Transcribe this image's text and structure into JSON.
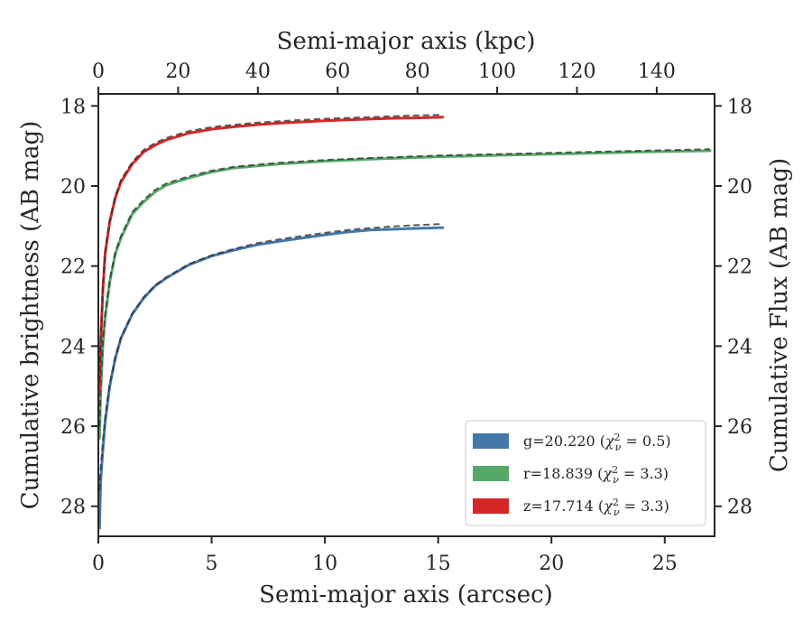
{
  "chart_data": {
    "type": "line",
    "xlabel": "Semi-major axis (arcsec)",
    "ylabel": "Cumulative brightness (AB mag)",
    "x2label": "Semi-major axis (kpc)",
    "y2label": "Cumulative Flux (AB mag)",
    "xlim": [
      0,
      27.2
    ],
    "ylim": [
      28.75,
      17.7
    ],
    "x2lim": [
      0,
      154.5
    ],
    "y_inverted": true,
    "x_ticks": [
      0,
      5,
      10,
      15,
      20,
      25
    ],
    "x2_ticks": [
      0,
      20,
      40,
      60,
      80,
      100,
      120,
      140
    ],
    "y_ticks": [
      18,
      20,
      22,
      24,
      26,
      28
    ],
    "grid": false,
    "legend_position": "lower-right",
    "series": [
      {
        "name": "g=20.220 (χ²ν = 0.5)",
        "legend_prefix": "g=20.220 (",
        "legend_chi": "χ",
        "legend_sup": "2",
        "legend_sub": "ν",
        "legend_suffix": " = 0.5)",
        "color": "#4477aa",
        "x": [
          0.05,
          0.1,
          0.2,
          0.3,
          0.5,
          0.75,
          1.0,
          1.5,
          2.0,
          2.5,
          3.0,
          4.0,
          5.0,
          6.0,
          7.0,
          8.0,
          9.0,
          10.0,
          11.0,
          12.0,
          13.0,
          14.0,
          15.2
        ],
        "y": [
          28.55,
          27.4,
          26.6,
          25.9,
          25.0,
          24.3,
          23.8,
          23.2,
          22.8,
          22.5,
          22.3,
          21.97,
          21.75,
          21.6,
          21.47,
          21.38,
          21.3,
          21.22,
          21.15,
          21.1,
          21.08,
          21.06,
          21.04
        ],
        "model_y": [
          27.6,
          27.1,
          26.4,
          25.8,
          24.95,
          24.28,
          23.78,
          23.18,
          22.78,
          22.48,
          22.28,
          21.95,
          21.73,
          21.57,
          21.43,
          21.33,
          21.25,
          21.17,
          21.1,
          21.05,
          21.01,
          20.98,
          20.95
        ]
      },
      {
        "name": "r=18.839 (χ²ν = 3.3)",
        "legend_prefix": "r=18.839 (",
        "legend_chi": "χ",
        "legend_sup": "2",
        "legend_sub": "ν",
        "legend_suffix": " = 3.3)",
        "color": "#55a868",
        "x": [
          0.05,
          0.1,
          0.2,
          0.3,
          0.5,
          0.75,
          1.0,
          1.5,
          2.0,
          2.5,
          3.0,
          4.0,
          5.0,
          6.0,
          8.0,
          10.0,
          12.0,
          15.0,
          18.0,
          21.0,
          24.0,
          27.0
        ],
        "y": [
          26.3,
          25.2,
          24.0,
          23.3,
          22.4,
          21.7,
          21.3,
          20.7,
          20.4,
          20.15,
          19.98,
          19.8,
          19.65,
          19.55,
          19.45,
          19.38,
          19.33,
          19.27,
          19.23,
          19.19,
          19.15,
          19.12
        ],
        "model_y": [
          26.0,
          25.0,
          23.9,
          23.2,
          22.35,
          21.65,
          21.25,
          20.65,
          20.35,
          20.1,
          19.94,
          19.76,
          19.62,
          19.52,
          19.42,
          19.35,
          19.3,
          19.24,
          19.2,
          19.16,
          19.12,
          19.08
        ]
      },
      {
        "name": "z=17.714 (χ²ν = 3.3)",
        "legend_prefix": "z=17.714 (",
        "legend_chi": "χ",
        "legend_sup": "2",
        "legend_sub": "ν",
        "legend_suffix": " = 3.3)",
        "color": "#d62728",
        "x": [
          0.05,
          0.1,
          0.2,
          0.3,
          0.5,
          0.75,
          1.0,
          1.5,
          2.0,
          2.5,
          3.0,
          4.0,
          5.0,
          6.0,
          7.0,
          8.0,
          9.0,
          10.0,
          11.0,
          12.0,
          13.0,
          14.0,
          15.2
        ],
        "y": [
          25.1,
          24.0,
          22.6,
          21.7,
          20.9,
          20.3,
          19.9,
          19.45,
          19.15,
          18.98,
          18.85,
          18.68,
          18.58,
          18.52,
          18.47,
          18.43,
          18.4,
          18.37,
          18.35,
          18.33,
          18.31,
          18.3,
          18.28
        ],
        "model_y": [
          24.9,
          23.9,
          22.55,
          21.65,
          20.85,
          20.25,
          19.85,
          19.4,
          19.1,
          18.93,
          18.8,
          18.63,
          18.53,
          18.47,
          18.42,
          18.38,
          18.35,
          18.32,
          18.3,
          18.28,
          18.26,
          18.24,
          18.22
        ]
      }
    ]
  }
}
